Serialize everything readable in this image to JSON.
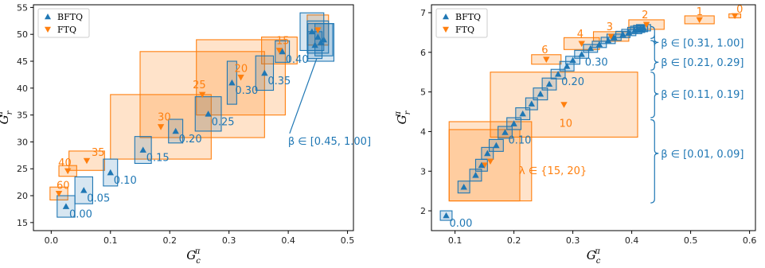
{
  "colors": {
    "bftq": "#1f77b4",
    "ftq": "#ff7f0e"
  },
  "chart_data": [
    {
      "type": "scatter",
      "xlabel": "G_c^π",
      "ylabel": "G_r^π",
      "xlim": [
        -0.03,
        0.51
      ],
      "ylim": [
        13.5,
        55.5
      ],
      "xticks": [
        0.0,
        0.1,
        0.2,
        0.3,
        0.4,
        0.5
      ],
      "xtick_labels": [
        "0.0",
        "0.1",
        "0.2",
        "0.3",
        "0.4",
        "0.5"
      ],
      "yticks": [
        15,
        20,
        25,
        30,
        35,
        40,
        45,
        50,
        55
      ],
      "ytick_labels": [
        "15",
        "20",
        "25",
        "30",
        "35",
        "40",
        "45",
        "50",
        "55"
      ],
      "legend": {
        "position": "top-left",
        "entries": [
          "BFTQ",
          "FTQ"
        ]
      },
      "series": [
        {
          "name": "BFTQ",
          "marker": "triangle-up",
          "points": [
            {
              "x": 0.025,
              "y": 18.0,
              "xe": 0.015,
              "ye": 2.0,
              "label": "0.00"
            },
            {
              "x": 0.055,
              "y": 21.0,
              "xe": 0.015,
              "ye": 2.5,
              "label": "0.05"
            },
            {
              "x": 0.1,
              "y": 24.3,
              "xe": 0.012,
              "ye": 2.5,
              "label": "0.10"
            },
            {
              "x": 0.155,
              "y": 28.5,
              "xe": 0.014,
              "ye": 2.5,
              "label": "0.15"
            },
            {
              "x": 0.21,
              "y": 32.0,
              "xe": 0.012,
              "ye": 2.2,
              "label": "0.20"
            },
            {
              "x": 0.265,
              "y": 35.2,
              "xe": 0.022,
              "ye": 3.2,
              "label": "0.25"
            },
            {
              "x": 0.305,
              "y": 41.0,
              "xe": 0.008,
              "ye": 4.0,
              "label": "0.30"
            },
            {
              "x": 0.36,
              "y": 42.8,
              "xe": 0.015,
              "ye": 3.2,
              "label": "0.35"
            },
            {
              "x": 0.39,
              "y": 46.8,
              "xe": 0.012,
              "ye": 2.0,
              "label": "0.40"
            },
            {
              "x": 0.44,
              "y": 50.5,
              "xe": 0.02,
              "ye": 3.5,
              "label": ""
            },
            {
              "x": 0.45,
              "y": 49.5,
              "xe": 0.018,
              "ye": 3.0,
              "label": ""
            },
            {
              "x": 0.455,
              "y": 48.5,
              "xe": 0.022,
              "ye": 3.5,
              "label": ""
            },
            {
              "x": 0.46,
              "y": 49.0,
              "xe": 0.015,
              "ye": 3.0,
              "label": ""
            },
            {
              "x": 0.445,
              "y": 48.0,
              "xe": 0.012,
              "ye": 2.5,
              "label": ""
            }
          ]
        },
        {
          "name": "FTQ",
          "marker": "triangle-down",
          "points": [
            {
              "x": 0.013,
              "y": 20.4,
              "xe": 0.015,
              "ye": 1.2,
              "label": "60"
            },
            {
              "x": 0.028,
              "y": 24.6,
              "xe": 0.015,
              "ye": 1.0,
              "label": "40"
            },
            {
              "x": 0.06,
              "y": 26.5,
              "xe": 0.03,
              "ye": 1.8,
              "label": "35"
            },
            {
              "x": 0.185,
              "y": 32.8,
              "xe": 0.085,
              "ye": 6.0,
              "label": "30"
            },
            {
              "x": 0.255,
              "y": 38.8,
              "xe": 0.105,
              "ye": 8.0,
              "label": "25"
            },
            {
              "x": 0.32,
              "y": 42.0,
              "xe": 0.075,
              "ye": 7.0,
              "label": "20"
            },
            {
              "x": 0.385,
              "y": 47.0,
              "xe": 0.03,
              "ye": 2.5,
              "label": "15"
            },
            {
              "x": 0.45,
              "y": 50.8,
              "xe": 0.018,
              "ye": 2.8,
              "label": ""
            }
          ]
        }
      ],
      "annotations": [
        {
          "text": "β ∈ [0.45, 1.00]",
          "x": 0.405,
          "y": 29.5,
          "color": "bftq",
          "arrow_to": [
            0.448,
            45.5
          ]
        }
      ]
    },
    {
      "type": "scatter",
      "xlabel": "G_c^π",
      "ylabel": "G_r^π",
      "xlim": [
        0.06,
        0.61
      ],
      "ylim": [
        1.5,
        7.2
      ],
      "xticks": [
        0.1,
        0.2,
        0.3,
        0.4,
        0.5,
        0.6
      ],
      "xtick_labels": [
        "0.1",
        "0.2",
        "0.3",
        "0.4",
        "0.5",
        "0.6"
      ],
      "yticks": [
        2,
        3,
        4,
        5,
        6,
        7
      ],
      "ytick_labels": [
        "2",
        "3",
        "4",
        "5",
        "6",
        "7"
      ],
      "legend": {
        "position": "top-left",
        "entries": [
          "BFTQ",
          "FTQ"
        ]
      },
      "series": [
        {
          "name": "BFTQ",
          "marker": "triangle-up",
          "points": [
            {
              "x": 0.085,
              "y": 1.88,
              "xe": 0.01,
              "ye": 0.12,
              "label": "0.00"
            },
            {
              "x": 0.115,
              "y": 2.6,
              "xe": 0.01,
              "ye": 0.15,
              "label": ""
            },
            {
              "x": 0.135,
              "y": 2.9,
              "xe": 0.01,
              "ye": 0.15,
              "label": ""
            },
            {
              "x": 0.145,
              "y": 3.15,
              "xe": 0.01,
              "ye": 0.15,
              "label": ""
            },
            {
              "x": 0.155,
              "y": 3.45,
              "xe": 0.01,
              "ye": 0.15,
              "label": ""
            },
            {
              "x": 0.17,
              "y": 3.65,
              "xe": 0.012,
              "ye": 0.15,
              "label": ""
            },
            {
              "x": 0.185,
              "y": 3.98,
              "xe": 0.012,
              "ye": 0.15,
              "label": "0.10"
            },
            {
              "x": 0.2,
              "y": 4.2,
              "xe": 0.012,
              "ye": 0.15,
              "label": ""
            },
            {
              "x": 0.215,
              "y": 4.45,
              "xe": 0.012,
              "ye": 0.15,
              "label": ""
            },
            {
              "x": 0.23,
              "y": 4.7,
              "xe": 0.01,
              "ye": 0.15,
              "label": ""
            },
            {
              "x": 0.245,
              "y": 4.95,
              "xe": 0.012,
              "ye": 0.15,
              "label": ""
            },
            {
              "x": 0.26,
              "y": 5.2,
              "xe": 0.012,
              "ye": 0.15,
              "label": ""
            },
            {
              "x": 0.275,
              "y": 5.45,
              "xe": 0.012,
              "ye": 0.12,
              "label": "0.20"
            },
            {
              "x": 0.29,
              "y": 5.65,
              "xe": 0.012,
              "ye": 0.12,
              "label": ""
            },
            {
              "x": 0.3,
              "y": 5.8,
              "xe": 0.012,
              "ye": 0.1,
              "label": ""
            },
            {
              "x": 0.315,
              "y": 5.95,
              "xe": 0.012,
              "ye": 0.1,
              "label": "0.30"
            },
            {
              "x": 0.33,
              "y": 6.1,
              "xe": 0.012,
              "ye": 0.1,
              "label": ""
            },
            {
              "x": 0.345,
              "y": 6.2,
              "xe": 0.012,
              "ye": 0.08,
              "label": ""
            },
            {
              "x": 0.36,
              "y": 6.3,
              "xe": 0.012,
              "ye": 0.08,
              "label": ""
            },
            {
              "x": 0.37,
              "y": 6.38,
              "xe": 0.012,
              "ye": 0.08,
              "label": ""
            },
            {
              "x": 0.385,
              "y": 6.45,
              "xe": 0.012,
              "ye": 0.08,
              "label": ""
            },
            {
              "x": 0.395,
              "y": 6.5,
              "xe": 0.012,
              "ye": 0.08,
              "label": ""
            },
            {
              "x": 0.405,
              "y": 6.55,
              "xe": 0.012,
              "ye": 0.08,
              "label": ""
            },
            {
              "x": 0.41,
              "y": 6.58,
              "xe": 0.012,
              "ye": 0.08,
              "label": ""
            },
            {
              "x": 0.415,
              "y": 6.6,
              "xe": 0.012,
              "ye": 0.08,
              "label": ""
            },
            {
              "x": 0.42,
              "y": 6.62,
              "xe": 0.012,
              "ye": 0.08,
              "label": ""
            }
          ]
        },
        {
          "name": "FTQ",
          "marker": "triangle-down",
          "points": [
            {
              "x": 0.16,
              "y": 3.25,
              "xe": 0.07,
              "ye": 1.0,
              "label": "λ ∈ {15, 20}"
            },
            {
              "x": 0.15,
              "y": 3.15,
              "xe": 0.06,
              "ye": 0.9,
              "label": ""
            },
            {
              "x": 0.285,
              "y": 4.68,
              "xe": 0.125,
              "ye": 0.82,
              "label": "10"
            },
            {
              "x": 0.255,
              "y": 5.82,
              "xe": 0.025,
              "ye": 0.12,
              "label": "6"
            },
            {
              "x": 0.315,
              "y": 6.22,
              "xe": 0.03,
              "ye": 0.15,
              "label": "4"
            },
            {
              "x": 0.365,
              "y": 6.4,
              "xe": 0.03,
              "ye": 0.12,
              "label": "3"
            },
            {
              "x": 0.425,
              "y": 6.7,
              "xe": 0.03,
              "ye": 0.12,
              "label": "2"
            },
            {
              "x": 0.515,
              "y": 6.82,
              "xe": 0.025,
              "ye": 0.1,
              "label": "1"
            },
            {
              "x": 0.575,
              "y": 6.92,
              "xe": 0.01,
              "ye": 0.05,
              "label": "0"
            }
          ]
        }
      ],
      "brackets": [
        {
          "text": "β ∈ [0.31, 1.00]",
          "y_from": 6.35,
          "y_to": 6.65,
          "y_text": 6.25
        },
        {
          "text": "β ∈ [0.21, 0.29]",
          "y_from": 5.55,
          "y_to": 6.3,
          "y_text": 5.75
        },
        {
          "text": "β ∈ [0.11, 0.19]",
          "y_from": 4.35,
          "y_to": 5.5,
          "y_text": 4.95
        },
        {
          "text": "β ∈ [0.01, 0.09]",
          "y_from": 2.2,
          "y_to": 4.3,
          "y_text": 3.45
        }
      ]
    }
  ]
}
